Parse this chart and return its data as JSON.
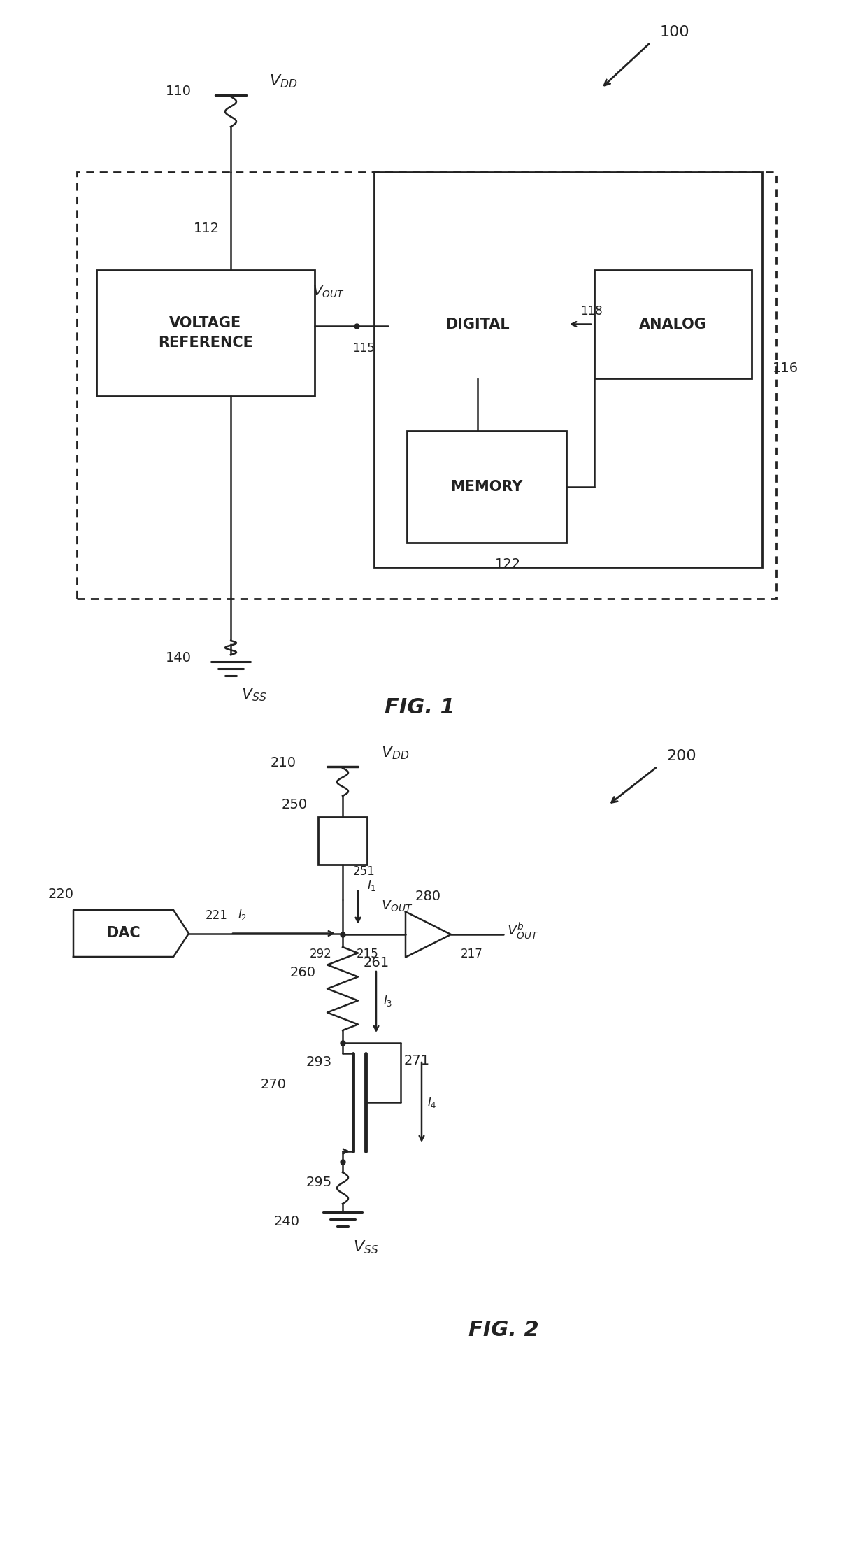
{
  "fig_width": 12.4,
  "fig_height": 22.06,
  "bg_color": "#ffffff",
  "line_color": "#222222",
  "fig1": {
    "title": "FIG. 1",
    "label_100": "100",
    "label_110": "110",
    "label_112": "112",
    "label_115": "115",
    "label_116": "116",
    "label_118": "118",
    "label_122": "122",
    "label_140": "140",
    "vdd_text": "$V_{DD}$",
    "vss_text": "$V_{SS}$",
    "vout_text": "$V_{OUT}$",
    "voltage_ref_line1": "VOLTAGE",
    "voltage_ref_line2": "REFERENCE",
    "digital_text": "DIGITAL",
    "analog_text": "ANALOG",
    "memory_text": "MEMORY"
  },
  "fig2": {
    "title": "FIG. 2",
    "label_200": "200",
    "label_210": "210",
    "label_215": "215",
    "label_217": "217",
    "label_220": "220",
    "label_221": "221",
    "label_240": "240",
    "label_250": "250",
    "label_251": "251",
    "label_260": "260",
    "label_261": "261",
    "label_270": "270",
    "label_271": "271",
    "label_280": "280",
    "label_292": "292",
    "label_293": "293",
    "label_295": "295",
    "vdd_text": "$V_{DD}$",
    "vss_text": "$V_{SS}$",
    "vout_text": "$V_{OUT}$",
    "voutb_text": "$V_{OUT}^{b}$",
    "dac_text": "DAC",
    "i1_text": "$I_1$",
    "i2_text": "$I_2$",
    "i3_text": "$I_3$",
    "i4_text": "$I_4$"
  }
}
